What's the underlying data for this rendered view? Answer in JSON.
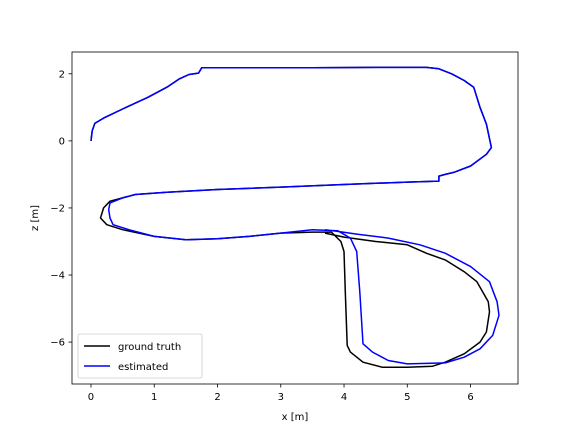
{
  "chart_data": {
    "type": "line",
    "title": "",
    "xlabel": "x [m]",
    "ylabel": "z [m]",
    "xlim": [
      -0.3,
      6.75
    ],
    "ylim": [
      -7.25,
      2.65
    ],
    "x_ticks": [
      0,
      1,
      2,
      3,
      4,
      5,
      6
    ],
    "y_ticks": [
      2,
      0,
      -2,
      -4,
      -6
    ],
    "x_tick_labels": [
      "0",
      "1",
      "2",
      "3",
      "4",
      "5",
      "6"
    ],
    "y_tick_labels": [
      "2",
      "0",
      "−2",
      "−4",
      "−6"
    ],
    "grid": false,
    "legend_position": "lower-left",
    "series": [
      {
        "name": "ground truth",
        "color": "#000000",
        "points": [
          [
            0.0,
            0.0
          ],
          [
            0.02,
            0.3
          ],
          [
            0.06,
            0.52
          ],
          [
            0.2,
            0.68
          ],
          [
            0.5,
            0.95
          ],
          [
            0.9,
            1.3
          ],
          [
            1.2,
            1.6
          ],
          [
            1.4,
            1.85
          ],
          [
            1.55,
            1.98
          ],
          [
            1.7,
            2.02
          ],
          [
            1.75,
            2.18
          ],
          [
            2.5,
            2.18
          ],
          [
            3.5,
            2.18
          ],
          [
            4.5,
            2.19
          ],
          [
            5.3,
            2.19
          ],
          [
            5.5,
            2.15
          ],
          [
            5.7,
            2.0
          ],
          [
            5.9,
            1.8
          ],
          [
            6.05,
            1.6
          ],
          [
            6.15,
            1.0
          ],
          [
            6.25,
            0.5
          ],
          [
            6.33,
            -0.2
          ],
          [
            6.25,
            -0.4
          ],
          [
            6.0,
            -0.75
          ],
          [
            5.75,
            -0.93
          ],
          [
            5.6,
            -1.0
          ],
          [
            5.5,
            -1.05
          ],
          [
            5.5,
            -1.2
          ],
          [
            5.0,
            -1.23
          ],
          [
            4.0,
            -1.3
          ],
          [
            3.0,
            -1.38
          ],
          [
            2.0,
            -1.45
          ],
          [
            1.2,
            -1.53
          ],
          [
            0.7,
            -1.6
          ],
          [
            0.5,
            -1.7
          ],
          [
            0.3,
            -1.8
          ],
          [
            0.2,
            -2.0
          ],
          [
            0.15,
            -2.3
          ],
          [
            0.25,
            -2.5
          ],
          [
            0.5,
            -2.65
          ],
          [
            1.0,
            -2.85
          ],
          [
            1.5,
            -2.95
          ],
          [
            2.0,
            -2.92
          ],
          [
            2.5,
            -2.85
          ],
          [
            3.0,
            -2.75
          ],
          [
            3.5,
            -2.72
          ],
          [
            3.8,
            -2.72
          ],
          [
            3.95,
            -3.0
          ],
          [
            4.0,
            -3.3
          ],
          [
            4.02,
            -4.5
          ],
          [
            4.05,
            -6.1
          ],
          [
            4.1,
            -6.3
          ],
          [
            4.3,
            -6.6
          ],
          [
            4.6,
            -6.75
          ],
          [
            5.0,
            -6.75
          ],
          [
            5.4,
            -6.72
          ],
          [
            5.6,
            -6.6
          ],
          [
            5.9,
            -6.35
          ],
          [
            6.15,
            -6.0
          ],
          [
            6.25,
            -5.7
          ],
          [
            6.3,
            -5.1
          ],
          [
            6.28,
            -4.8
          ],
          [
            6.1,
            -4.2
          ],
          [
            5.9,
            -3.9
          ],
          [
            5.6,
            -3.55
          ],
          [
            5.3,
            -3.35
          ],
          [
            5.0,
            -3.1
          ],
          [
            4.5,
            -3.0
          ],
          [
            4.0,
            -2.87
          ],
          [
            3.7,
            -2.75
          ]
        ]
      },
      {
        "name": "estimated",
        "color": "#0000ff",
        "points": [
          [
            0.0,
            0.0
          ],
          [
            0.02,
            0.3
          ],
          [
            0.06,
            0.52
          ],
          [
            0.2,
            0.68
          ],
          [
            0.5,
            0.95
          ],
          [
            0.9,
            1.3
          ],
          [
            1.2,
            1.6
          ],
          [
            1.4,
            1.85
          ],
          [
            1.55,
            1.98
          ],
          [
            1.7,
            2.02
          ],
          [
            1.75,
            2.18
          ],
          [
            2.5,
            2.18
          ],
          [
            3.5,
            2.18
          ],
          [
            4.5,
            2.19
          ],
          [
            5.3,
            2.19
          ],
          [
            5.5,
            2.15
          ],
          [
            5.7,
            2.0
          ],
          [
            5.9,
            1.8
          ],
          [
            6.05,
            1.6
          ],
          [
            6.15,
            1.0
          ],
          [
            6.25,
            0.5
          ],
          [
            6.33,
            -0.2
          ],
          [
            6.25,
            -0.4
          ],
          [
            6.0,
            -0.75
          ],
          [
            5.75,
            -0.93
          ],
          [
            5.6,
            -1.0
          ],
          [
            5.5,
            -1.05
          ],
          [
            5.5,
            -1.2
          ],
          [
            5.0,
            -1.23
          ],
          [
            4.0,
            -1.3
          ],
          [
            3.0,
            -1.38
          ],
          [
            2.0,
            -1.45
          ],
          [
            1.2,
            -1.53
          ],
          [
            0.7,
            -1.6
          ],
          [
            0.5,
            -1.7
          ],
          [
            0.3,
            -1.85
          ],
          [
            0.28,
            -2.05
          ],
          [
            0.3,
            -2.3
          ],
          [
            0.35,
            -2.5
          ],
          [
            0.6,
            -2.65
          ],
          [
            1.0,
            -2.85
          ],
          [
            1.5,
            -2.95
          ],
          [
            2.0,
            -2.92
          ],
          [
            2.5,
            -2.85
          ],
          [
            3.0,
            -2.75
          ],
          [
            3.5,
            -2.65
          ],
          [
            3.9,
            -2.68
          ],
          [
            4.1,
            -2.9
          ],
          [
            4.2,
            -3.3
          ],
          [
            4.25,
            -4.5
          ],
          [
            4.3,
            -6.05
          ],
          [
            4.45,
            -6.3
          ],
          [
            4.7,
            -6.55
          ],
          [
            5.0,
            -6.65
          ],
          [
            5.6,
            -6.62
          ],
          [
            5.9,
            -6.45
          ],
          [
            6.15,
            -6.2
          ],
          [
            6.35,
            -5.8
          ],
          [
            6.45,
            -5.2
          ],
          [
            6.42,
            -4.8
          ],
          [
            6.3,
            -4.2
          ],
          [
            6.0,
            -3.75
          ],
          [
            5.6,
            -3.35
          ],
          [
            5.2,
            -3.1
          ],
          [
            4.7,
            -2.9
          ],
          [
            4.2,
            -2.78
          ],
          [
            3.9,
            -2.7
          ],
          [
            3.7,
            -2.65
          ]
        ]
      }
    ]
  }
}
